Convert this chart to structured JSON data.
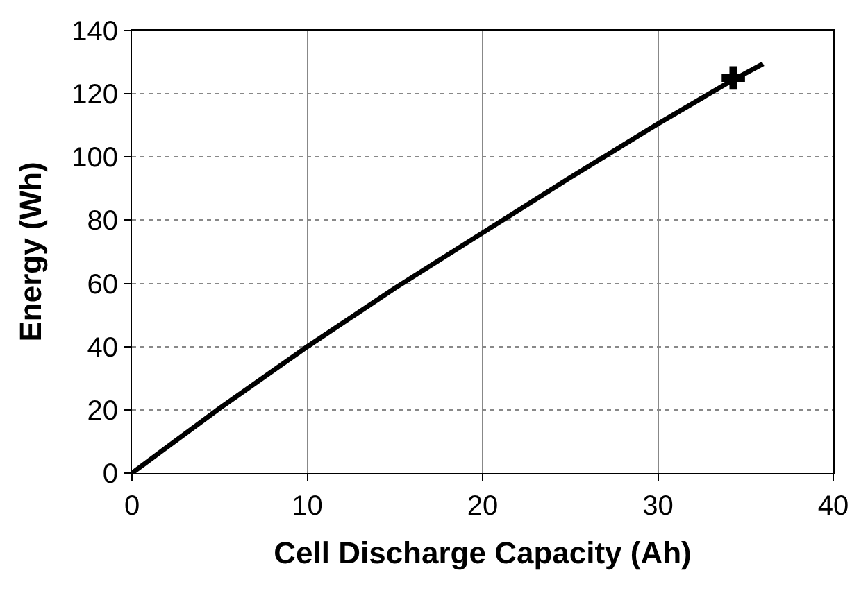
{
  "chart_data": {
    "type": "line",
    "xlabel": "Cell Discharge Capacity (Ah)",
    "ylabel": "Energy (Wh)",
    "series": [
      {
        "color": "#000000",
        "x": [
          0,
          5,
          10,
          15,
          20,
          25,
          30,
          34,
          36
        ],
        "values": [
          0,
          20.5,
          40,
          58.5,
          76,
          93.5,
          110.5,
          123.5,
          129.5
        ],
        "marker": "none",
        "line_style": "solid"
      },
      {
        "type": "scatter",
        "color": "#000000",
        "x": [
          34.3
        ],
        "values": [
          125
        ],
        "marker": "cross"
      }
    ],
    "xlim": [
      0,
      40
    ],
    "xticks": [
      0,
      10,
      20,
      30,
      40
    ],
    "ylim": [
      0,
      140
    ],
    "yticks": [
      0,
      20,
      40,
      60,
      80,
      100,
      120,
      140
    ],
    "grid": true
  }
}
